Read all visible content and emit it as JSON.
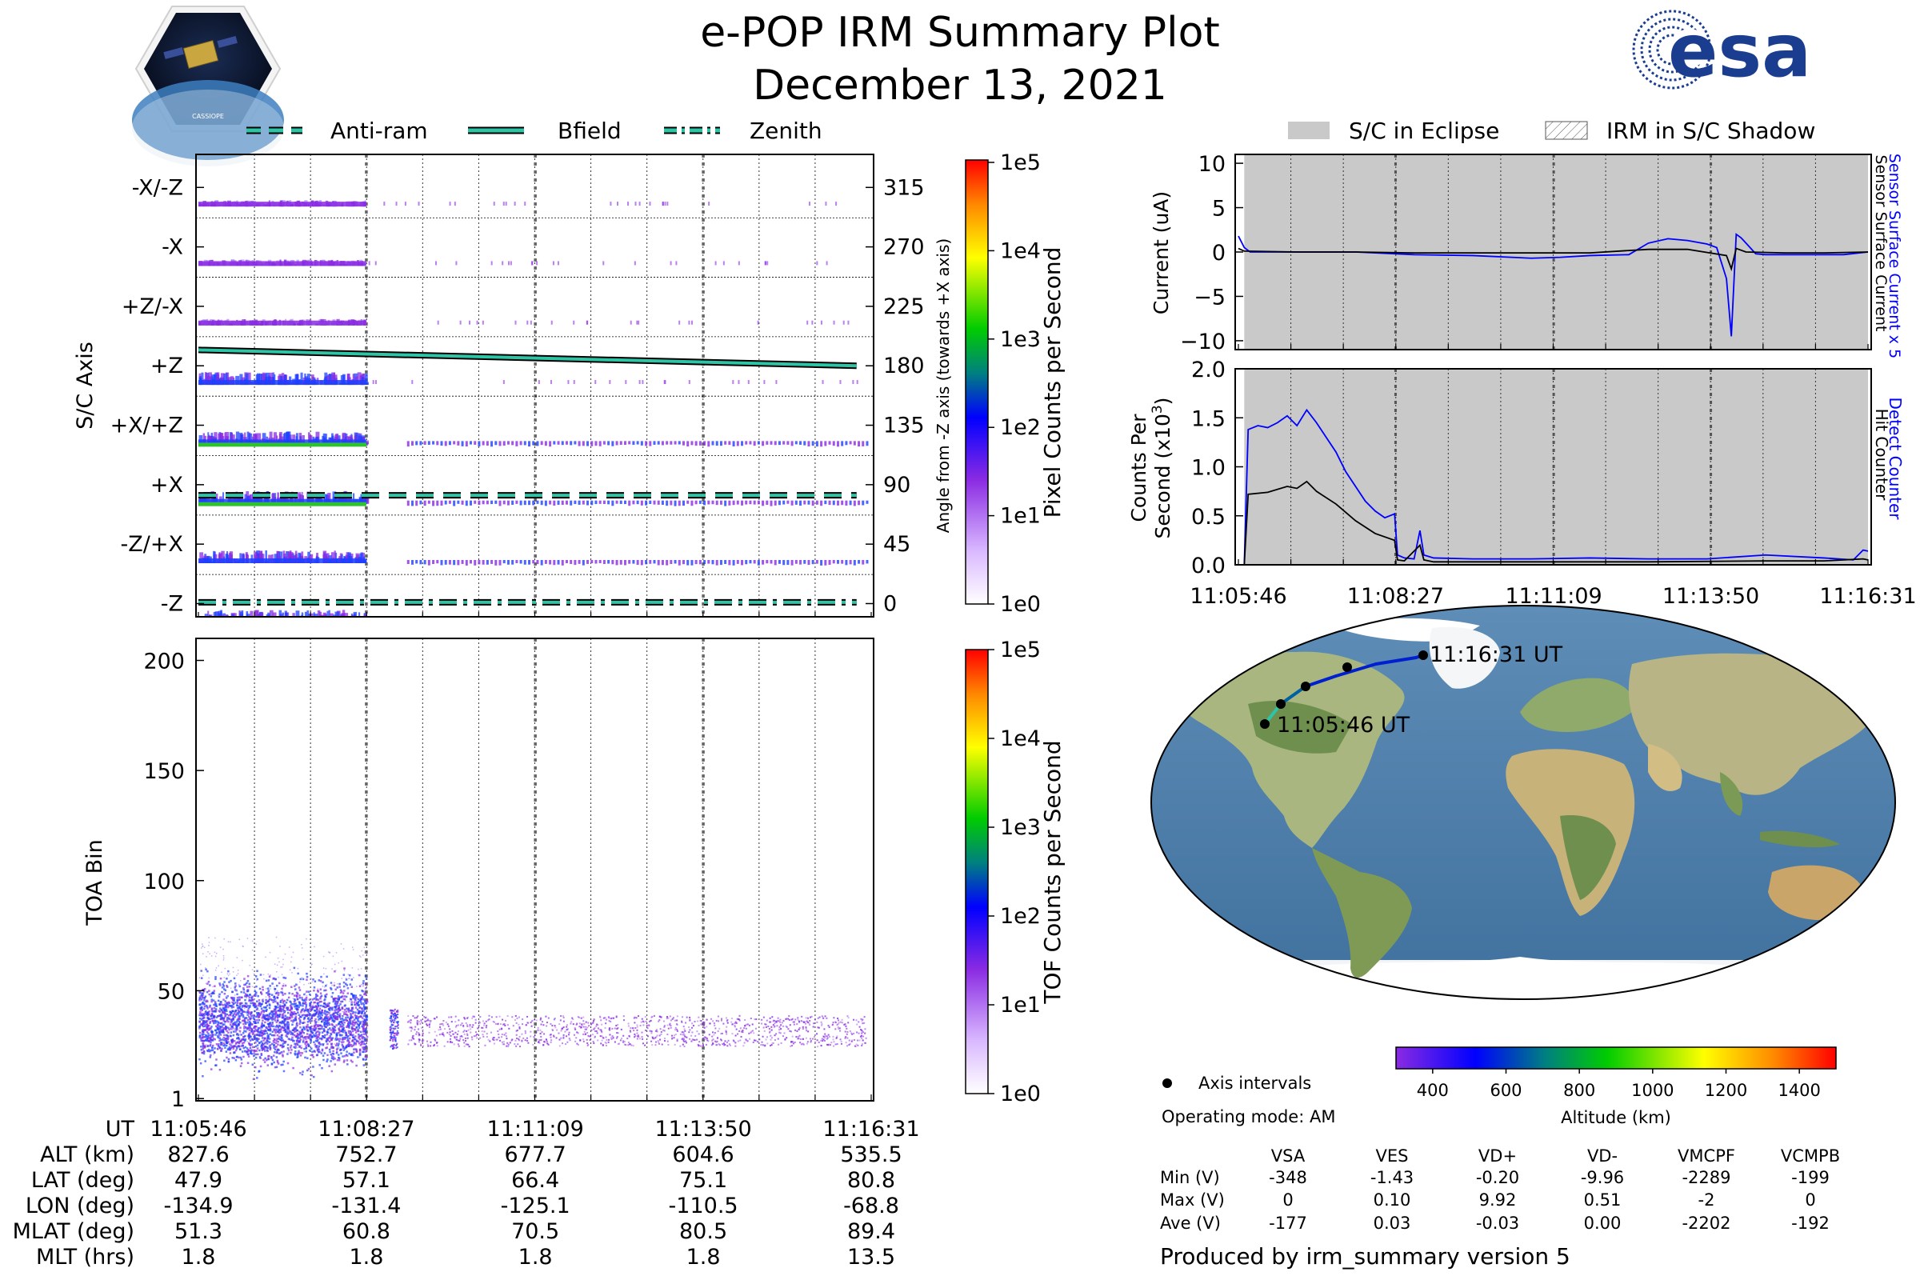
{
  "header": {
    "title": "e-POP IRM Summary Plot",
    "date": "December 13, 2021",
    "mission_logo_text": "CASSIOPE",
    "agency_logo_text": "esa"
  },
  "colors": {
    "trace_teal": "#2ec4a6",
    "current_blue": "#0000ff",
    "eclipse_gray": "#c8c9c8",
    "ion_purple": "#8a2be2",
    "ion_blue": "#1e40ff",
    "ion_green": "#2fc22f",
    "orbit_blue": "#0020d0",
    "ocean": "#4f7fa8"
  },
  "chart_data": [
    {
      "id": "pixel-counts",
      "type": "heatmap",
      "ylabel": "S/C Axis",
      "y_tick_labels": [
        "-X/-Z",
        "-X",
        "+Z/-X",
        "+Z",
        "+X/+Z",
        "+X",
        "-Z/+X",
        "-Z"
      ],
      "right_ylabel": "Angle from -Z axis (towards +X axis)",
      "right_ticks": [
        315,
        270,
        225,
        180,
        135,
        90,
        45,
        0
      ],
      "right_ylim": [
        -10,
        340
      ],
      "colorbar_label": "Pixel Counts per Second",
      "colorbar_ticks": [
        "1e5",
        "1e4",
        "1e3",
        "1e2",
        "1e1",
        "1e0"
      ],
      "legend": [
        "Anti-ram",
        "Bfield",
        "Zenith"
      ],
      "lines": [
        {
          "name": "Anti-ram",
          "style": "dashed",
          "x": [
            0,
            631
          ],
          "y": [
            82,
            82
          ]
        },
        {
          "name": "Bfield",
          "style": "solid",
          "x": [
            0,
            631
          ],
          "y": [
            192,
            180
          ]
        },
        {
          "name": "Zenith",
          "style": "dashdot",
          "x": [
            0,
            631
          ],
          "y": [
            1,
            1
          ]
        }
      ]
    },
    {
      "id": "tof-counts",
      "type": "heatmap",
      "ylabel": "TOA Bin",
      "yticks": [
        1,
        50,
        100,
        150,
        200
      ],
      "ylim": [
        0,
        210
      ],
      "colorbar_label": "TOF Counts per Second",
      "colorbar_ticks": [
        "1e5",
        "1e4",
        "1e3",
        "1e2",
        "1e1",
        "1e0"
      ],
      "xticks": [
        "11:05:46",
        "11:08:27",
        "11:11:09",
        "11:13:50",
        "11:16:31"
      ]
    },
    {
      "id": "surface-current",
      "type": "line",
      "ylabel": "Current (uA)",
      "yticks": [
        10,
        5,
        0,
        -5,
        -10
      ],
      "ylim": [
        -11,
        11
      ],
      "xlim_s": [
        0,
        645
      ],
      "right_labels": [
        "Sensor Surface Current x 5",
        "Sensor Surface Current"
      ],
      "legend": [
        "S/C in Eclipse",
        "IRM in S/C Shadow"
      ],
      "series": [
        {
          "name": "Sensor Surface Current x 5",
          "color": "blue",
          "x": [
            0,
            6,
            12,
            60,
            120,
            180,
            240,
            300,
            330,
            360,
            400,
            420,
            440,
            460,
            480,
            490,
            500,
            505,
            510,
            515,
            520,
            530,
            540,
            560,
            600,
            620,
            645
          ],
          "y": [
            1.8,
            0.5,
            0,
            0,
            0,
            -0.3,
            -0.4,
            -0.7,
            -0.6,
            -0.4,
            -0.3,
            1.0,
            1.5,
            1.3,
            0.9,
            0.5,
            -3,
            -9.5,
            2.0,
            1.6,
            1.0,
            -0.2,
            -0.3,
            -0.3,
            -0.3,
            -0.3,
            0
          ]
        },
        {
          "name": "Sensor Surface Current",
          "color": "black",
          "x": [
            0,
            6,
            60,
            120,
            180,
            240,
            300,
            360,
            420,
            460,
            500,
            505,
            510,
            520,
            560,
            600,
            645
          ],
          "y": [
            0.4,
            0.1,
            0,
            0,
            -0.1,
            -0.1,
            -0.1,
            -0.1,
            0.3,
            0.3,
            -0.4,
            -1.9,
            0.4,
            0,
            -0.1,
            -0.1,
            0
          ]
        }
      ]
    },
    {
      "id": "counts-per-second",
      "type": "line",
      "ylabel": "Counts Per Second (x10³)",
      "yticks": [
        2.0,
        1.5,
        1.0,
        0.5,
        0.0
      ],
      "ylim": [
        0,
        2.0
      ],
      "xlim_s": [
        0,
        645
      ],
      "xticks": [
        "11:05:46",
        "11:08:27",
        "11:11:09",
        "11:13:50",
        "11:16:31"
      ],
      "right_labels": [
        "Detect Counter",
        "Hit Counter"
      ],
      "series": [
        {
          "name": "Detect Counter",
          "color": "blue",
          "x": [
            0,
            6,
            10,
            20,
            30,
            40,
            50,
            60,
            70,
            80,
            90,
            100,
            110,
            120,
            130,
            140,
            150,
            160,
            163,
            170,
            180,
            186,
            190,
            200,
            240,
            300,
            360,
            420,
            480,
            540,
            600,
            630,
            640,
            645
          ],
          "y": [
            0,
            0,
            1.38,
            1.42,
            1.4,
            1.45,
            1.52,
            1.42,
            1.58,
            1.45,
            1.3,
            1.15,
            0.95,
            0.8,
            0.65,
            0.55,
            0.48,
            0.52,
            0.1,
            0.07,
            0.06,
            0.35,
            0.1,
            0.07,
            0.06,
            0.06,
            0.07,
            0.06,
            0.06,
            0.1,
            0.07,
            0.05,
            0.15,
            0.14
          ]
        },
        {
          "name": "Hit Counter",
          "color": "black",
          "x": [
            0,
            6,
            10,
            30,
            50,
            60,
            70,
            80,
            100,
            120,
            140,
            160,
            163,
            170,
            186,
            190,
            200,
            300,
            420,
            540,
            600,
            640,
            645
          ],
          "y": [
            0,
            0,
            0.72,
            0.74,
            0.8,
            0.78,
            0.85,
            0.75,
            0.62,
            0.45,
            0.32,
            0.25,
            0.05,
            0.04,
            0.2,
            0.05,
            0.03,
            0.03,
            0.03,
            0.04,
            0.04,
            0.06,
            0.05
          ]
        }
      ]
    }
  ],
  "map": {
    "start_label": "11:05:46 UT",
    "end_label": "11:16:31 UT",
    "colorbar_ticks": [
      "400",
      "600",
      "800",
      "1000",
      "1200",
      "1400"
    ],
    "colorbar_label": "Altitude (km)",
    "legend_axis_intervals": "Axis intervals",
    "operating_mode": "Operating mode: AM"
  },
  "time_table": {
    "row_labels": [
      "UT",
      "ALT (km)",
      "LAT (deg)",
      "LON (deg)",
      "MLAT (deg)",
      "MLT (hrs)"
    ],
    "columns": [
      [
        "11:05:46",
        "827.6",
        "47.9",
        "-134.9",
        "51.3",
        "1.8"
      ],
      [
        "11:08:27",
        "752.7",
        "57.1",
        "-131.4",
        "60.8",
        "1.8"
      ],
      [
        "11:11:09",
        "677.7",
        "66.4",
        "-125.1",
        "70.5",
        "1.8"
      ],
      [
        "11:13:50",
        "604.6",
        "75.1",
        "-110.5",
        "80.5",
        "1.8"
      ],
      [
        "11:16:31",
        "535.5",
        "80.8",
        "-68.8",
        "89.4",
        "13.5"
      ]
    ]
  },
  "voltage_table": {
    "headers": [
      "VSA",
      "VES",
      "VD+",
      "VD-",
      "VMCPF",
      "VCMPB"
    ],
    "rows": [
      {
        "label": "Min (V)",
        "values": [
          "-348",
          "-1.43",
          "-0.20",
          "-9.96",
          "-2289",
          "-199"
        ]
      },
      {
        "label": "Max (V)",
        "values": [
          "0",
          "0.10",
          "9.92",
          "0.51",
          "-2",
          "0"
        ]
      },
      {
        "label": "Ave (V)",
        "values": [
          "-177",
          "0.03",
          "-0.03",
          "0.00",
          "-2202",
          "-192"
        ]
      }
    ]
  },
  "footer": "Produced by irm_summary version 5"
}
